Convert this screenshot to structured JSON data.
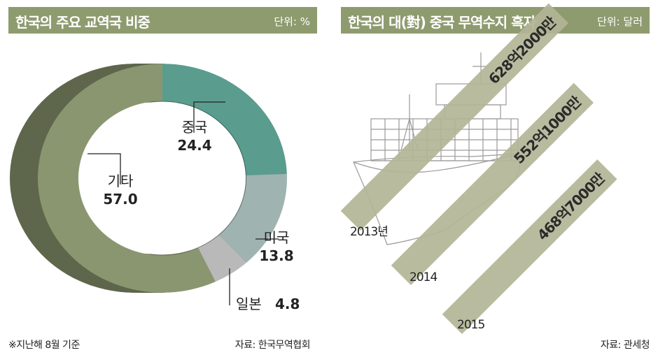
{
  "left": {
    "title": "한국의 주요 교역국 비중",
    "unit": "단위: %",
    "footnote": "※지난해 8월 기준",
    "source": "자료: 한국무역협회"
  },
  "right": {
    "title": "한국의 대(對) 중국 무역수지 흑자",
    "unit": "단위: 달러",
    "source": "자료: 관세청"
  },
  "colors": {
    "header": "#8e9b6f",
    "china": "#5a9c8e",
    "usa": "#9fb3b0",
    "japan": "#b9b9b9",
    "other": "#8a9670",
    "bar": "#b3b596"
  },
  "chart_data": [
    {
      "type": "pie",
      "title": "한국의 주요 교역국 비중",
      "unit": "단위: %",
      "slices": [
        {
          "label": "중국",
          "value": 24.4,
          "value_label": "24.4"
        },
        {
          "label": "미국",
          "value": 13.8,
          "value_label": "13.8"
        },
        {
          "label": "일본",
          "value": 4.8,
          "value_label": "4.8"
        },
        {
          "label": "기타",
          "value": 57.0,
          "value_label": "57.0"
        }
      ]
    },
    {
      "type": "bar",
      "title": "한국의 대(對) 중국 무역수지 흑자",
      "unit": "단위: 달러",
      "categories": [
        "2013년",
        "2014",
        "2015"
      ],
      "values": [
        62820000000,
        55210000000,
        46870000000
      ],
      "value_labels": [
        "628억2000만",
        "552억1000만",
        "468억7000만"
      ]
    }
  ]
}
